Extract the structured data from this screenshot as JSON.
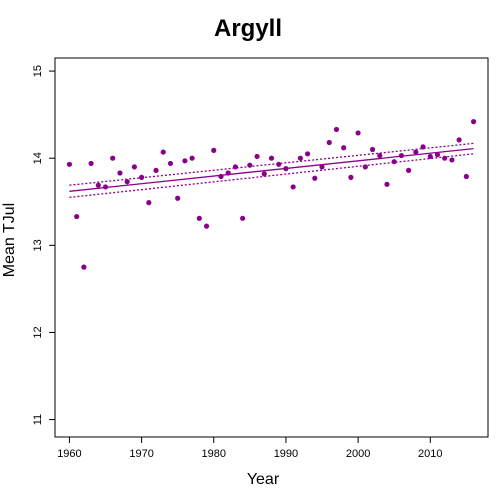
{
  "chart_data": {
    "type": "scatter",
    "title": "Argyll",
    "xlabel": "Year",
    "ylabel": "Mean TJul",
    "xlim": [
      1958,
      2018
    ],
    "ylim": [
      10.8,
      15.15
    ],
    "xticks": [
      1960,
      1970,
      1980,
      1990,
      2000,
      2010
    ],
    "yticks": [
      11,
      12,
      13,
      14,
      15
    ],
    "grid": false,
    "colors": {
      "points": "#8b008b",
      "lines": "#8b008b",
      "axis": "#000000"
    },
    "series": [
      {
        "values": [
          [
            1960,
            13.93
          ],
          [
            1961,
            13.33
          ],
          [
            1962,
            12.75
          ],
          [
            1963,
            13.94
          ],
          [
            1964,
            13.69
          ],
          [
            1965,
            13.67
          ],
          [
            1966,
            14.0
          ],
          [
            1967,
            13.83
          ],
          [
            1968,
            13.73
          ],
          [
            1969,
            13.9
          ],
          [
            1970,
            13.78
          ],
          [
            1971,
            13.49
          ],
          [
            1972,
            13.86
          ],
          [
            1973,
            14.07
          ],
          [
            1974,
            13.94
          ],
          [
            1975,
            13.54
          ],
          [
            1976,
            13.97
          ],
          [
            1977,
            14.0
          ],
          [
            1978,
            13.31
          ],
          [
            1979,
            13.22
          ],
          [
            1980,
            14.09
          ],
          [
            1981,
            13.79
          ],
          [
            1982,
            13.83
          ],
          [
            1983,
            13.9
          ],
          [
            1984,
            13.31
          ],
          [
            1985,
            13.92
          ],
          [
            1986,
            14.02
          ],
          [
            1987,
            13.82
          ],
          [
            1988,
            14.0
          ],
          [
            1989,
            13.93
          ],
          [
            1990,
            13.88
          ],
          [
            1991,
            13.67
          ],
          [
            1992,
            14.0
          ],
          [
            1993,
            14.05
          ],
          [
            1994,
            13.77
          ],
          [
            1995,
            13.9
          ],
          [
            1996,
            14.18
          ],
          [
            1997,
            14.33
          ],
          [
            1998,
            14.12
          ],
          [
            1999,
            13.78
          ],
          [
            2000,
            14.29
          ],
          [
            2001,
            13.9
          ],
          [
            2002,
            14.1
          ],
          [
            2003,
            14.03
          ],
          [
            2004,
            13.7
          ],
          [
            2005,
            13.96
          ],
          [
            2006,
            14.03
          ],
          [
            2007,
            13.86
          ],
          [
            2008,
            14.07
          ],
          [
            2009,
            14.13
          ],
          [
            2010,
            14.02
          ],
          [
            2011,
            14.04
          ],
          [
            2012,
            14.0
          ],
          [
            2013,
            13.98
          ],
          [
            2014,
            14.21
          ],
          [
            2015,
            13.79
          ],
          [
            2016,
            14.42
          ]
        ]
      }
    ],
    "trend": {
      "x": [
        1960,
        2016
      ],
      "fit": [
        13.62,
        14.11
      ],
      "upper": [
        13.69,
        14.17
      ],
      "lower": [
        13.55,
        14.05
      ]
    }
  }
}
